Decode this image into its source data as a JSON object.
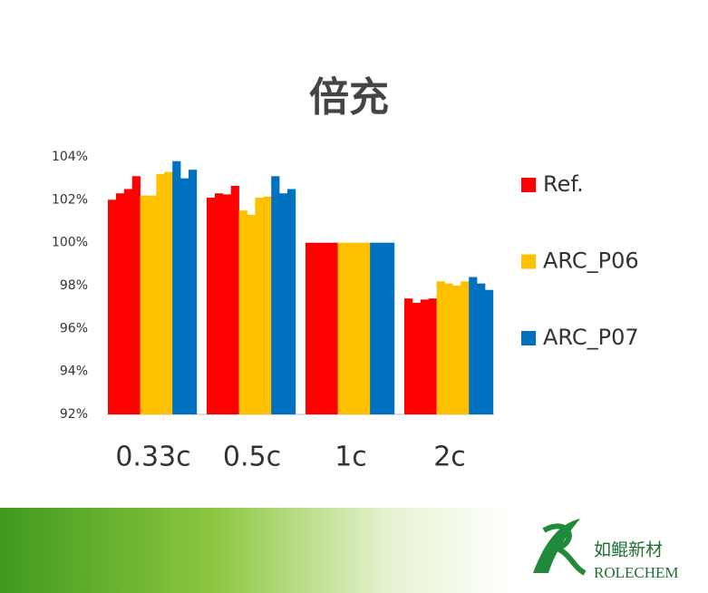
{
  "chart_data": {
    "type": "bar",
    "title": "倍充",
    "categories": [
      "0.33c",
      "0.5c",
      "1c",
      "2c"
    ],
    "series": [
      {
        "name": "Ref.",
        "color": "#ff0000",
        "values": [
          [
            102.0,
            102.3,
            102.5,
            103.1
          ],
          [
            102.1,
            102.3,
            102.25,
            102.65
          ],
          [
            100,
            100,
            100,
            100
          ],
          [
            97.4,
            97.2,
            97.35,
            97.4
          ]
        ]
      },
      {
        "name": "ARC_P06",
        "color": "#ffc000",
        "values": [
          [
            102.2,
            102.2,
            103.2,
            103.3
          ],
          [
            101.5,
            101.3,
            102.1,
            102.15
          ],
          [
            100,
            100,
            100,
            100
          ],
          [
            98.2,
            98.1,
            98.0,
            98.2
          ]
        ]
      },
      {
        "name": "ARC_P07",
        "color": "#0070c0",
        "values": [
          [
            103.8,
            103.0,
            103.4
          ],
          [
            103.1,
            102.3,
            102.5
          ],
          [
            100,
            100,
            100
          ],
          [
            98.4,
            98.1,
            97.8
          ]
        ]
      }
    ],
    "ylim": [
      92,
      104
    ],
    "yticks": [
      {
        "value": 92,
        "label": "92%"
      },
      {
        "value": 94,
        "label": "94%"
      },
      {
        "value": 96,
        "label": "96%"
      },
      {
        "value": 98,
        "label": "98%"
      },
      {
        "value": 100,
        "label": "100%"
      },
      {
        "value": 102,
        "label": "102%"
      },
      {
        "value": 104,
        "label": "104%"
      }
    ],
    "grid": false,
    "legend": "right"
  },
  "footer": {
    "brand_cn": "如鲲新材",
    "brand_en": "ROLECHEM"
  }
}
